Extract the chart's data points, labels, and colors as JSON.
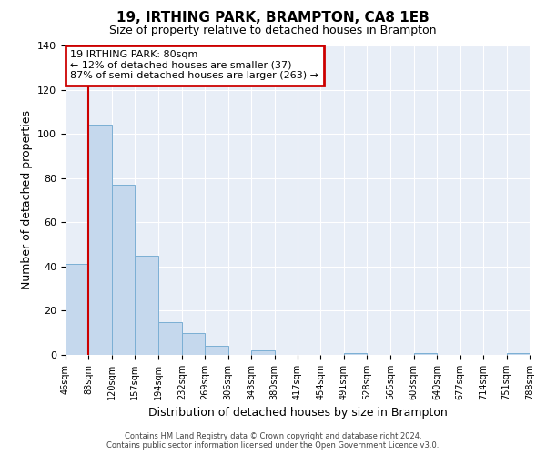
{
  "title": "19, IRTHING PARK, BRAMPTON, CA8 1EB",
  "subtitle": "Size of property relative to detached houses in Brampton",
  "xlabel": "Distribution of detached houses by size in Brampton",
  "ylabel": "Number of detached properties",
  "bin_edges": [
    46,
    83,
    120,
    157,
    194,
    232,
    269,
    306,
    343,
    380,
    417,
    454,
    491,
    528,
    565,
    603,
    640,
    677,
    714,
    751,
    788
  ],
  "bin_labels": [
    "46sqm",
    "83sqm",
    "120sqm",
    "157sqm",
    "194sqm",
    "232sqm",
    "269sqm",
    "306sqm",
    "343sqm",
    "380sqm",
    "417sqm",
    "454sqm",
    "491sqm",
    "528sqm",
    "565sqm",
    "603sqm",
    "640sqm",
    "677sqm",
    "714sqm",
    "751sqm",
    "788sqm"
  ],
  "counts": [
    41,
    104,
    77,
    45,
    15,
    10,
    4,
    0,
    2,
    0,
    0,
    0,
    1,
    0,
    0,
    1,
    0,
    0,
    0,
    1
  ],
  "bar_color": "#c5d8ed",
  "bar_edge_color": "#7bafd4",
  "vline_x": 83,
  "vline_color": "#cc0000",
  "annotation_title": "19 IRTHING PARK: 80sqm",
  "annotation_line1": "← 12% of detached houses are smaller (37)",
  "annotation_line2": "87% of semi-detached houses are larger (263) →",
  "annotation_box_color": "#ffffff",
  "annotation_box_edge_color": "#cc0000",
  "ylim": [
    0,
    140
  ],
  "yticks": [
    0,
    20,
    40,
    60,
    80,
    100,
    120,
    140
  ],
  "footer1": "Contains HM Land Registry data © Crown copyright and database right 2024.",
  "footer2": "Contains public sector information licensed under the Open Government Licence v3.0.",
  "bg_color": "#ffffff",
  "plot_bg_color": "#e8eef7"
}
